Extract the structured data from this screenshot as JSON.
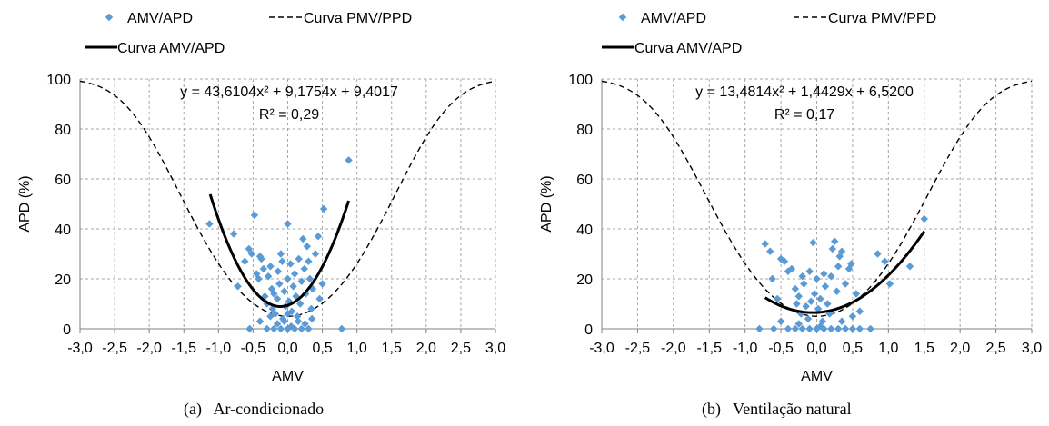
{
  "chart_data": [
    {
      "type": "scatter",
      "caption": "(a)   Ar-condicionado",
      "xlabel": "AMV",
      "ylabel": "APD (%)",
      "xlim": [
        -3.0,
        3.0
      ],
      "ylim": [
        0,
        100
      ],
      "x_ticks": [
        "-3,0",
        "-2,5",
        "-2,0",
        "-1,5",
        "-1,0",
        "-0,5",
        "0,0",
        "0,5",
        "1,0",
        "1,5",
        "2,0",
        "2,5",
        "3,0"
      ],
      "y_ticks": [
        "0",
        "20",
        "40",
        "60",
        "80",
        "100"
      ],
      "grid": true,
      "legend": {
        "position": "top",
        "entries": [
          "AMV/APD",
          "Curva PMV/PPD",
          "Curva AMV/APD"
        ]
      },
      "equation": "y = 43,6104x² + 9,1754x + 9,4017",
      "r_squared": "R² = 0,29",
      "fit": {
        "a": 43.6104,
        "b": 9.1754,
        "c": 9.4017,
        "x_range": [
          -1.12,
          0.88
        ]
      },
      "series": [
        {
          "name": "AMV/APD",
          "kind": "points",
          "color": "#5b9bd5",
          "points": [
            [
              -1.13,
              42
            ],
            [
              -0.78,
              38
            ],
            [
              -0.72,
              17
            ],
            [
              -0.62,
              27
            ],
            [
              -0.56,
              32
            ],
            [
              -0.52,
              30
            ],
            [
              -0.48,
              45.5
            ],
            [
              -0.45,
              22
            ],
            [
              -0.42,
              20
            ],
            [
              -0.4,
              29
            ],
            [
              -0.38,
              28
            ],
            [
              -0.35,
              24
            ],
            [
              -0.33,
              13
            ],
            [
              -0.3,
              10
            ],
            [
              -0.28,
              21
            ],
            [
              -0.25,
              25
            ],
            [
              -0.23,
              16
            ],
            [
              -0.22,
              8
            ],
            [
              -0.2,
              14
            ],
            [
              -0.18,
              6
            ],
            [
              -0.15,
              12
            ],
            [
              -0.14,
              23
            ],
            [
              -0.12,
              18
            ],
            [
              -0.1,
              30
            ],
            [
              -0.08,
              27
            ],
            [
              -0.07,
              4
            ],
            [
              -0.05,
              15
            ],
            [
              -0.03,
              9
            ],
            [
              0.0,
              42
            ],
            [
              0.0,
              20
            ],
            [
              0.02,
              11
            ],
            [
              0.04,
              26
            ],
            [
              0.06,
              7
            ],
            [
              0.08,
              17
            ],
            [
              0.1,
              22
            ],
            [
              0.12,
              13
            ],
            [
              0.14,
              5
            ],
            [
              0.16,
              28
            ],
            [
              0.18,
              10
            ],
            [
              0.2,
              19
            ],
            [
              0.22,
              36
            ],
            [
              0.24,
              24
            ],
            [
              0.26,
              14
            ],
            [
              0.28,
              33
            ],
            [
              0.3,
              27
            ],
            [
              0.32,
              20
            ],
            [
              0.34,
              8
            ],
            [
              0.36,
              16
            ],
            [
              0.4,
              30
            ],
            [
              0.44,
              37
            ],
            [
              0.46,
              12
            ],
            [
              0.5,
              18
            ],
            [
              0.52,
              48
            ],
            [
              0.88,
              67.5
            ],
            [
              0.78,
              0
            ],
            [
              -0.55,
              0
            ],
            [
              -0.3,
              0
            ],
            [
              -0.2,
              0
            ],
            [
              -0.1,
              0
            ],
            [
              0.0,
              0
            ],
            [
              0.1,
              0
            ],
            [
              0.2,
              0
            ],
            [
              0.3,
              0
            ],
            [
              -0.4,
              3
            ],
            [
              -0.15,
              2
            ],
            [
              0.05,
              1
            ],
            [
              0.15,
              3
            ],
            [
              0.25,
              2
            ],
            [
              0.35,
              4
            ],
            [
              -0.25,
              5
            ],
            [
              0.0,
              6
            ],
            [
              -0.05,
              3
            ]
          ]
        },
        {
          "name": "Curva PMV/PPD",
          "kind": "pmv",
          "color": "#000000"
        },
        {
          "name": "Curva AMV/APD",
          "kind": "fit",
          "color": "#000000"
        }
      ]
    },
    {
      "type": "scatter",
      "caption": "(b)   Ventilação natural",
      "xlabel": "AMV",
      "ylabel": "APD (%)",
      "xlim": [
        -3.0,
        3.0
      ],
      "ylim": [
        0,
        100
      ],
      "x_ticks": [
        "-3,0",
        "-2,5",
        "-2,0",
        "-1,5",
        "-1,0",
        "-0,5",
        "0,0",
        "0,5",
        "1,0",
        "1,5",
        "2,0",
        "2,5",
        "3,0"
      ],
      "y_ticks": [
        "0",
        "20",
        "40",
        "60",
        "80",
        "100"
      ],
      "grid": true,
      "legend": {
        "position": "top",
        "entries": [
          "AMV/APD",
          "Curva PMV/PPD",
          "Curva AMV/APD"
        ]
      },
      "equation": "y = 13,4814x² + 1,4429x + 6,5200",
      "r_squared": "R² = 0,17",
      "fit": {
        "a": 13.4814,
        "b": 1.4429,
        "c": 6.52,
        "x_range": [
          -0.72,
          1.5
        ]
      },
      "series": [
        {
          "name": "AMV/APD",
          "kind": "points",
          "color": "#5b9bd5",
          "points": [
            [
              -0.72,
              34
            ],
            [
              -0.65,
              31
            ],
            [
              -0.62,
              20
            ],
            [
              -0.55,
              12
            ],
            [
              -0.5,
              28
            ],
            [
              -0.45,
              27
            ],
            [
              -0.4,
              23
            ],
            [
              -0.35,
              24
            ],
            [
              -0.3,
              16
            ],
            [
              -0.28,
              10
            ],
            [
              -0.25,
              13
            ],
            [
              -0.22,
              6
            ],
            [
              -0.2,
              21
            ],
            [
              -0.18,
              18
            ],
            [
              -0.15,
              9
            ],
            [
              -0.12,
              4
            ],
            [
              -0.1,
              23
            ],
            [
              -0.08,
              11
            ],
            [
              -0.05,
              34.5
            ],
            [
              -0.03,
              14
            ],
            [
              0.0,
              20
            ],
            [
              0.02,
              8
            ],
            [
              0.05,
              12
            ],
            [
              0.08,
              3
            ],
            [
              0.1,
              22
            ],
            [
              0.12,
              17
            ],
            [
              0.15,
              10
            ],
            [
              0.18,
              6
            ],
            [
              0.2,
              21
            ],
            [
              0.22,
              32
            ],
            [
              0.25,
              35
            ],
            [
              0.28,
              15
            ],
            [
              0.3,
              25
            ],
            [
              0.32,
              29
            ],
            [
              0.35,
              31
            ],
            [
              0.4,
              18
            ],
            [
              0.45,
              24
            ],
            [
              0.48,
              26
            ],
            [
              0.5,
              5
            ],
            [
              0.55,
              14
            ],
            [
              0.6,
              7
            ],
            [
              0.85,
              30
            ],
            [
              0.95,
              27
            ],
            [
              1.02,
              18
            ],
            [
              1.3,
              25
            ],
            [
              1.5,
              44
            ],
            [
              -0.8,
              0
            ],
            [
              -0.6,
              0
            ],
            [
              -0.4,
              0
            ],
            [
              -0.3,
              0
            ],
            [
              -0.2,
              0
            ],
            [
              -0.1,
              0
            ],
            [
              0.0,
              0
            ],
            [
              0.1,
              0
            ],
            [
              0.2,
              0
            ],
            [
              0.3,
              0
            ],
            [
              0.4,
              0
            ],
            [
              0.5,
              0
            ],
            [
              0.6,
              0
            ],
            [
              0.75,
              0
            ],
            [
              -0.5,
              3
            ],
            [
              -0.25,
              2
            ],
            [
              0.05,
              1
            ],
            [
              0.35,
              3
            ]
          ]
        },
        {
          "name": "Curva PMV/PPD",
          "kind": "pmv",
          "color": "#000000"
        },
        {
          "name": "Curva AMV/APD",
          "kind": "fit",
          "color": "#000000"
        }
      ]
    }
  ]
}
